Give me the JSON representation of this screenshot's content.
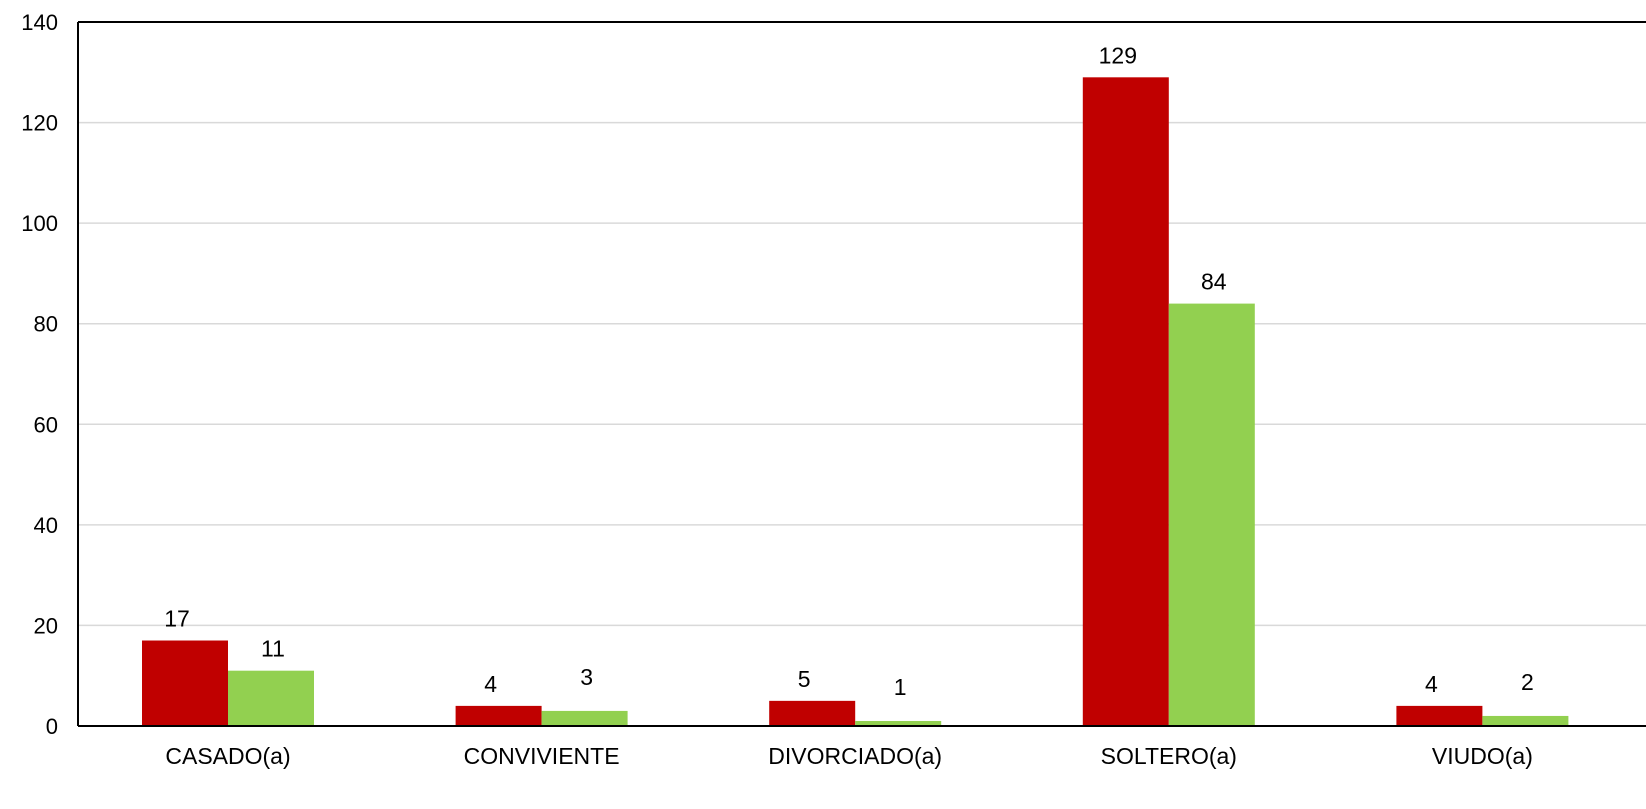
{
  "chart_data": {
    "type": "bar",
    "categories": [
      "CASADO(a)",
      "CONVIVIENTE",
      "DIVORCIADO(a)",
      "SOLTERO(a)",
      "VIUDO(a)"
    ],
    "series": [
      {
        "values": [
          17,
          4,
          5,
          129,
          4
        ],
        "color": "#c00000"
      },
      {
        "values": [
          11,
          3,
          1,
          84,
          2
        ],
        "color": "#92d050"
      }
    ],
    "ylim": [
      0,
      140
    ],
    "yticks": [
      0,
      20,
      40,
      60,
      80,
      100,
      120,
      140
    ],
    "grid": true,
    "legend": "none"
  }
}
